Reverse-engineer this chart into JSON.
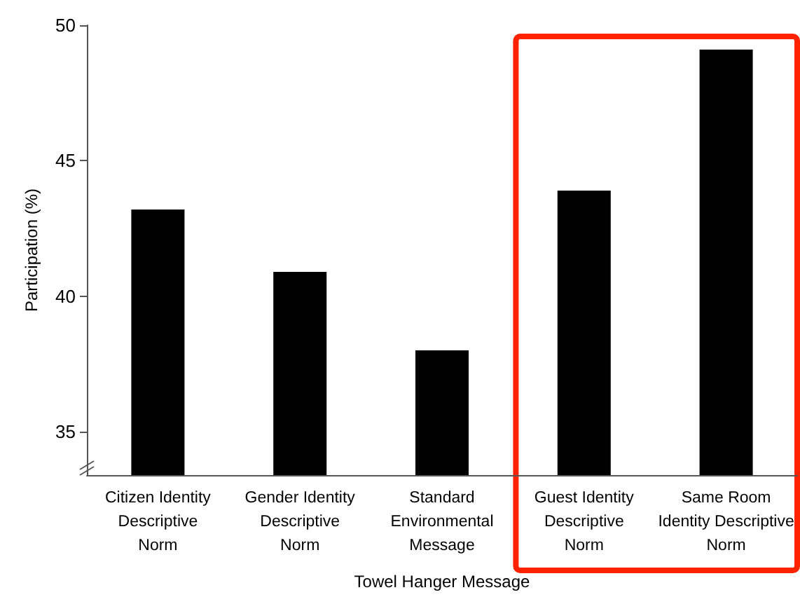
{
  "chart_data": {
    "type": "bar",
    "xlabel": "Towel Hanger Message",
    "ylabel": "Participation (%)",
    "categories": [
      "Citizen Identity\nDescriptive\nNorm",
      "Gender Identity\nDescriptive\nNorm",
      "Standard\nEnvironmental\nMessage",
      "Guest Identity\nDescriptive\nNorm",
      "Same Room\nIdentity Descriptive\nNorm"
    ],
    "values": [
      43.2,
      40.9,
      38.0,
      43.9,
      49.1
    ],
    "color": "#000000",
    "ylim": [
      33.4,
      50
    ],
    "yticks": [
      35,
      40,
      45,
      50
    ],
    "grid": false
  }
}
